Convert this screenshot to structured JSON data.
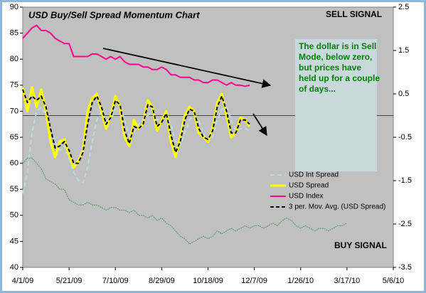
{
  "chart_data": {
    "type": "line",
    "title": "USD Buy/Sell Spread Momentum Chart",
    "sell_signal": "SELL SIGNAL",
    "buy_signal": "BUY SIGNAL",
    "note": [
      "The dollar is in Sell",
      "Mode, below zero,",
      "but prices have",
      "held up for a couple",
      "of days..."
    ],
    "x": [
      "4/1/09",
      "4/6/09",
      "4/11/09",
      "4/16/09",
      "4/21/09",
      "4/26/09",
      "5/1/09",
      "5/6/09",
      "5/11/09",
      "5/16/09",
      "5/21/09",
      "5/26/09",
      "5/31/09",
      "6/5/09",
      "6/10/09",
      "6/15/09",
      "6/20/09",
      "6/25/09",
      "6/30/09",
      "7/5/09",
      "7/10/09",
      "7/15/09",
      "7/20/09",
      "7/25/09",
      "7/30/09",
      "8/4/09",
      "8/9/09",
      "8/14/09",
      "8/19/09",
      "8/24/09",
      "8/29/09",
      "9/3/09",
      "9/8/09",
      "9/13/09",
      "9/18/09",
      "9/23/09",
      "9/28/09",
      "10/3/09",
      "10/8/09",
      "10/13/09",
      "10/18/09",
      "10/23/09",
      "10/28/09",
      "11/2/09",
      "11/7/09",
      "11/12/09",
      "11/17/09",
      "11/22/09",
      "11/27/09",
      "12/2/09",
      "12/7/09",
      "12/12/09",
      "12/17/09",
      "12/22/09",
      "12/27/09",
      "1/1/10",
      "1/6/10",
      "1/11/10",
      "1/16/10",
      "1/21/10",
      "1/26/10",
      "1/31/10",
      "2/5/10",
      "2/10/10",
      "2/15/10",
      "2/20/10",
      "2/25/10",
      "3/2/10",
      "3/7/10",
      "3/12/10",
      "3/17/10"
    ],
    "xlim": [
      "4/1/09",
      "5/6/10"
    ],
    "xticks": [
      "4/1/09",
      "5/21/09",
      "7/10/09",
      "8/29/09",
      "10/18/09",
      "12/7/09",
      "1/26/10",
      "3/17/10",
      "5/6/10"
    ],
    "ylim": [
      40,
      90
    ],
    "yticks": [
      40,
      45,
      50,
      55,
      60,
      65,
      70,
      75,
      80,
      85,
      90
    ],
    "y2lim": [
      -3.5,
      2.5
    ],
    "y2ticks": [
      -3.5,
      -2.5,
      -1.5,
      -0.5,
      0.5,
      1.5,
      2.5
    ],
    "zero_line": true,
    "series": [
      {
        "name": "USD Int Spread",
        "color": "#b9dbe3",
        "dash": "6 4",
        "width": 2,
        "axis": "y2",
        "values": [
          -1.8,
          -1.3,
          -0.4,
          0.1,
          0.2,
          0.0,
          -0.3,
          -0.6,
          -0.8,
          -0.7,
          -1.0,
          -1.3,
          -1.5,
          -1.55,
          -1.2,
          -0.6,
          -0.1,
          0.1,
          -0.1,
          -0.1,
          0.15,
          0.2,
          -0.1,
          -0.45,
          -0.4,
          -0.2,
          -0.1,
          0.0,
          0.1,
          -0.1,
          -0.1,
          0.05,
          -0.2,
          -0.6,
          -0.7,
          -0.4,
          -0.1,
          0.0,
          -0.1,
          -0.4,
          -0.6,
          -0.5,
          -0.1,
          0.15,
          0.2,
          -0.1,
          -0.35,
          -0.3,
          -0.3,
          -0.35,
          null,
          null,
          null,
          null,
          null,
          null,
          null,
          null,
          null,
          null,
          null,
          null,
          null,
          null,
          null,
          null,
          null,
          null,
          null,
          null,
          null
        ]
      },
      {
        "name": "USD Spread",
        "color": "#ffff00",
        "width": 3.5,
        "axis": "y2",
        "values": [
          0.65,
          0.1,
          0.65,
          0.2,
          0.6,
          0.1,
          -0.6,
          -0.95,
          -0.6,
          -0.55,
          -0.9,
          -1.2,
          -1.05,
          -0.8,
          0.1,
          0.4,
          0.5,
          0.1,
          -0.3,
          0.0,
          0.45,
          0.2,
          -0.5,
          -0.7,
          -0.1,
          -0.3,
          -0.2,
          0.35,
          0.2,
          -0.35,
          -0.1,
          0.1,
          -0.6,
          -0.95,
          -0.5,
          0.0,
          0.2,
          0.1,
          -0.4,
          -0.5,
          -0.6,
          -0.3,
          0.3,
          0.5,
          0.0,
          -0.5,
          -0.4,
          -0.05,
          -0.1,
          -0.25,
          null,
          null,
          null,
          null,
          null,
          null,
          null,
          null,
          null,
          null,
          null,
          null,
          null,
          null,
          null,
          null,
          null,
          null,
          null,
          null,
          null
        ]
      },
      {
        "name": "USD Index",
        "color": "#ff0090",
        "width": 2,
        "axis": "y",
        "values": [
          84,
          85,
          86,
          86.5,
          85.5,
          85.5,
          85,
          84,
          83.5,
          83,
          83,
          80.5,
          80.5,
          80.5,
          80.5,
          81,
          81,
          80.5,
          80,
          80.5,
          80,
          80.5,
          79.5,
          79,
          79,
          79,
          78.5,
          78.5,
          78,
          78,
          78.5,
          78,
          77,
          77,
          76.5,
          76.5,
          76.5,
          76,
          76,
          75.5,
          75.5,
          76,
          76,
          75.5,
          75,
          75.5,
          75,
          75,
          74.8,
          75,
          null,
          null,
          null,
          null,
          null,
          null,
          null,
          null,
          null,
          null,
          null,
          null,
          null,
          null,
          null,
          null,
          null,
          null,
          null,
          null,
          null
        ]
      },
      {
        "name": "3 per. Mov. Avg. (USD Spread)",
        "color": "#000000",
        "dash": "5 3",
        "width": 2,
        "axis": "y2",
        "values": [
          0.6,
          0.3,
          0.45,
          0.35,
          0.45,
          0.2,
          -0.3,
          -0.75,
          -0.7,
          -0.6,
          -0.8,
          -1.1,
          -1.1,
          -0.85,
          -0.2,
          0.3,
          0.45,
          0.2,
          -0.2,
          -0.05,
          0.35,
          0.25,
          -0.35,
          -0.65,
          -0.25,
          -0.3,
          -0.2,
          0.25,
          0.2,
          -0.25,
          -0.15,
          0.05,
          -0.45,
          -0.85,
          -0.6,
          -0.1,
          0.15,
          0.1,
          -0.3,
          -0.5,
          -0.55,
          -0.35,
          0.2,
          0.45,
          0.1,
          -0.4,
          -0.4,
          -0.1,
          -0.1,
          -0.2,
          null,
          null,
          null,
          null,
          null,
          null,
          null,
          null,
          null,
          null,
          null,
          null,
          null,
          null,
          null,
          null,
          null,
          null,
          null,
          null,
          null
        ]
      },
      {
        "color": "#3f9a5f",
        "dash": "2 1",
        "width": 1,
        "axis": "y",
        "values": [
          60,
          61,
          61,
          60,
          59,
          57,
          56.5,
          56,
          55,
          55,
          53,
          52.5,
          52,
          52,
          52.5,
          52,
          52,
          51.5,
          51,
          51.5,
          51.5,
          51,
          51,
          50.5,
          51,
          50,
          50,
          49.5,
          50,
          49,
          49.5,
          48.5,
          48,
          47,
          46,
          45.5,
          44.5,
          45,
          45.5,
          46,
          45.5,
          46,
          47,
          46.5,
          47,
          47.5,
          47,
          47.5,
          48,
          47.5,
          48,
          48,
          47.5,
          48,
          48.5,
          48,
          49,
          49.5,
          49,
          48,
          47.5,
          48,
          47.5,
          47,
          47.5,
          47.5,
          47,
          47.5,
          48,
          48,
          48.5
        ]
      }
    ]
  }
}
